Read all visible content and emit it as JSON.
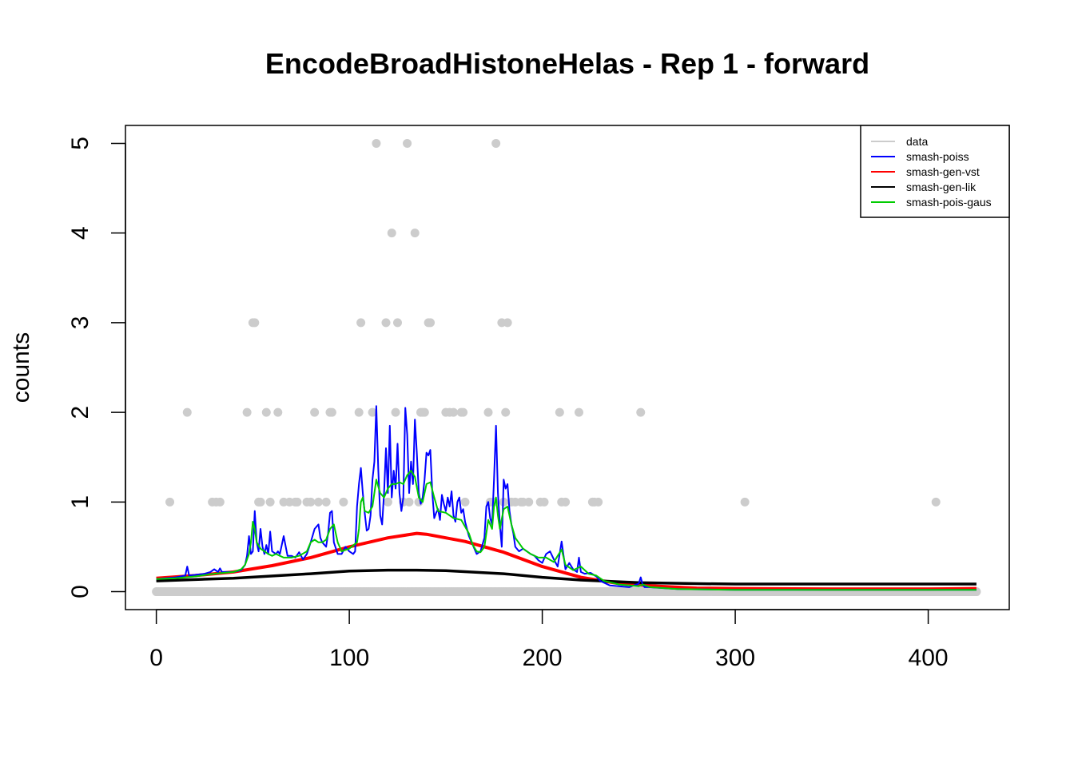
{
  "chart_data": {
    "type": "line",
    "title": "EncodeBroadHistoneHelas - Rep 1 - forward",
    "xlabel": "",
    "ylabel": "counts",
    "xlim": [
      -16,
      442
    ],
    "ylim": [
      -0.2,
      5.2
    ],
    "x_ticks": [
      0,
      100,
      200,
      300,
      400
    ],
    "y_ticks": [
      0,
      1,
      2,
      3,
      4,
      5
    ],
    "grid": false,
    "legend_position": "top-right",
    "legend": [
      {
        "label": "data",
        "color": "#cccccc"
      },
      {
        "label": "smash-poiss",
        "color": "#0000ff"
      },
      {
        "label": "smash-gen-vst",
        "color": "#ff0000"
      },
      {
        "label": "smash-gen-lik",
        "color": "#000000"
      },
      {
        "label": "smash-pois-gaus",
        "color": "#00cc00"
      }
    ],
    "data_points": {
      "name": "data",
      "color": "#cccccc",
      "x_zero_range": [
        0,
        425
      ],
      "nonzero_x": [
        7,
        16,
        29,
        31,
        33,
        47,
        50,
        51,
        53,
        54,
        57,
        59,
        63,
        66,
        69,
        72,
        73,
        78,
        80,
        82,
        84,
        88,
        90,
        91,
        97,
        105,
        106,
        112,
        114,
        119,
        120,
        122,
        124,
        125,
        128,
        130,
        131,
        134,
        136,
        137,
        138,
        139,
        141,
        142,
        150,
        152,
        154,
        158,
        159,
        160,
        172,
        173,
        175,
        176,
        179,
        180,
        181,
        182,
        184,
        186,
        189,
        190,
        193,
        199,
        201,
        209,
        210,
        212,
        219,
        226,
        227,
        229,
        251,
        305,
        404
      ],
      "nonzero_y": [
        1,
        2,
        1,
        1,
        1,
        2,
        3,
        3,
        1,
        1,
        2,
        1,
        2,
        1,
        1,
        1,
        1,
        1,
        1,
        2,
        1,
        1,
        2,
        2,
        1,
        2,
        3,
        2,
        5,
        3,
        1,
        4,
        2,
        3,
        1,
        5,
        1,
        4,
        1,
        2,
        2,
        2,
        3,
        3,
        2,
        2,
        2,
        2,
        2,
        1,
        2,
        1,
        1,
        5,
        3,
        1,
        2,
        3,
        1,
        1,
        1,
        1,
        1,
        1,
        1,
        2,
        1,
        1,
        2,
        1,
        1,
        1,
        2,
        1,
        1
      ]
    },
    "series": [
      {
        "name": "smash-poiss",
        "color": "#0000ff",
        "x": [
          0,
          10,
          15,
          16,
          17,
          25,
          28,
          30,
          32,
          33,
          34,
          40,
          44,
          46,
          47,
          48,
          49,
          50,
          51,
          52,
          53,
          54,
          55,
          56,
          57,
          58,
          59,
          60,
          62,
          63,
          64,
          66,
          68,
          70,
          72,
          74,
          76,
          78,
          80,
          82,
          84,
          85,
          86,
          88,
          89,
          90,
          91,
          92,
          94,
          96,
          98,
          100,
          102,
          103,
          104,
          105,
          106,
          107,
          108,
          109,
          110,
          111,
          112,
          113,
          114,
          115,
          116,
          117,
          118,
          119,
          120,
          121,
          122,
          123,
          124,
          125,
          126,
          127,
          128,
          129,
          130,
          131,
          132,
          133,
          134,
          135,
          136,
          137,
          138,
          139,
          140,
          141,
          142,
          143,
          144,
          145,
          146,
          147,
          148,
          149,
          150,
          151,
          152,
          153,
          154,
          155,
          156,
          157,
          158,
          159,
          160,
          162,
          164,
          166,
          168,
          170,
          171,
          172,
          173,
          174,
          175,
          176,
          177,
          178,
          179,
          180,
          181,
          182,
          183,
          184,
          185,
          186,
          188,
          190,
          192,
          194,
          196,
          198,
          200,
          202,
          204,
          206,
          208,
          210,
          212,
          214,
          216,
          218,
          219,
          220,
          222,
          225,
          228,
          230,
          235,
          245,
          250,
          251,
          252,
          253,
          255,
          270,
          300,
          350,
          400,
          425
        ],
        "y": [
          0.14,
          0.16,
          0.18,
          0.28,
          0.18,
          0.2,
          0.22,
          0.25,
          0.22,
          0.26,
          0.22,
          0.22,
          0.24,
          0.3,
          0.4,
          0.62,
          0.42,
          0.45,
          0.9,
          0.55,
          0.45,
          0.7,
          0.5,
          0.42,
          0.52,
          0.42,
          0.67,
          0.45,
          0.42,
          0.45,
          0.42,
          0.62,
          0.4,
          0.4,
          0.38,
          0.44,
          0.36,
          0.42,
          0.55,
          0.7,
          0.75,
          0.6,
          0.55,
          0.5,
          0.65,
          0.88,
          0.9,
          0.55,
          0.42,
          0.42,
          0.5,
          0.45,
          0.42,
          0.45,
          0.95,
          1.2,
          1.38,
          1.1,
          0.88,
          0.68,
          0.7,
          0.85,
          1.25,
          1.45,
          2.07,
          1.38,
          0.85,
          0.75,
          1.1,
          1.6,
          1.1,
          1.85,
          1.05,
          1.35,
          1.15,
          1.65,
          1.1,
          0.9,
          1.05,
          2.05,
          1.75,
          1.1,
          1.45,
          1.2,
          1.92,
          1.55,
          1.1,
          0.98,
          1.05,
          1.25,
          1.55,
          1.52,
          1.58,
          1.1,
          0.82,
          0.88,
          0.92,
          0.8,
          1.08,
          0.98,
          0.9,
          1.05,
          0.95,
          1.12,
          0.85,
          0.78,
          1.0,
          1.05,
          0.88,
          0.92,
          0.78,
          0.62,
          0.52,
          0.42,
          0.45,
          0.6,
          0.95,
          1.0,
          0.82,
          0.75,
          1.25,
          1.85,
          1.1,
          0.75,
          0.5,
          1.25,
          1.15,
          1.2,
          0.9,
          0.75,
          0.65,
          0.5,
          0.45,
          0.48,
          0.45,
          0.42,
          0.4,
          0.35,
          0.32,
          0.42,
          0.45,
          0.36,
          0.28,
          0.56,
          0.25,
          0.32,
          0.25,
          0.22,
          0.38,
          0.22,
          0.2,
          0.21,
          0.17,
          0.12,
          0.07,
          0.05,
          0.09,
          0.16,
          0.08,
          0.05,
          0.05,
          0.03,
          0.02,
          0.02,
          0.02,
          0.02
        ]
      },
      {
        "name": "smash-gen-vst",
        "color": "#ff0000",
        "x": [
          0,
          20,
          40,
          60,
          80,
          100,
          120,
          135,
          140,
          160,
          180,
          200,
          220,
          240,
          260,
          280,
          300,
          350,
          400,
          425
        ],
        "y": [
          0.15,
          0.18,
          0.22,
          0.29,
          0.38,
          0.5,
          0.6,
          0.65,
          0.64,
          0.56,
          0.44,
          0.28,
          0.16,
          0.09,
          0.06,
          0.04,
          0.035,
          0.03,
          0.03,
          0.035
        ]
      },
      {
        "name": "smash-gen-lik",
        "color": "#000000",
        "x": [
          0,
          40,
          80,
          100,
          120,
          135,
          150,
          180,
          200,
          220,
          250,
          280,
          300,
          350,
          400,
          425
        ],
        "y": [
          0.12,
          0.15,
          0.2,
          0.23,
          0.24,
          0.24,
          0.235,
          0.2,
          0.16,
          0.13,
          0.1,
          0.09,
          0.085,
          0.085,
          0.085,
          0.085
        ]
      },
      {
        "name": "smash-pois-gaus",
        "color": "#00cc00",
        "x": [
          0,
          10,
          20,
          30,
          40,
          44,
          46,
          48,
          49,
          50,
          51,
          52,
          54,
          56,
          58,
          60,
          62,
          64,
          66,
          70,
          74,
          78,
          80,
          82,
          84,
          86,
          88,
          90,
          92,
          94,
          96,
          100,
          104,
          105,
          106,
          107,
          108,
          110,
          112,
          114,
          116,
          118,
          120,
          122,
          124,
          126,
          128,
          130,
          132,
          134,
          136,
          138,
          140,
          142,
          144,
          146,
          150,
          154,
          158,
          162,
          164,
          166,
          168,
          170,
          172,
          174,
          175,
          176,
          177,
          178,
          180,
          182,
          184,
          186,
          190,
          194,
          198,
          202,
          206,
          208,
          210,
          212,
          216,
          220,
          224,
          228,
          232,
          240,
          250,
          252,
          256,
          270,
          300,
          350,
          400,
          425
        ],
        "y": [
          0.14,
          0.15,
          0.17,
          0.2,
          0.22,
          0.25,
          0.3,
          0.42,
          0.55,
          0.78,
          0.7,
          0.55,
          0.48,
          0.45,
          0.42,
          0.4,
          0.42,
          0.4,
          0.38,
          0.38,
          0.4,
          0.45,
          0.55,
          0.58,
          0.55,
          0.55,
          0.58,
          0.7,
          0.75,
          0.55,
          0.45,
          0.48,
          0.55,
          0.7,
          1.0,
          1.05,
          0.9,
          0.88,
          0.95,
          1.25,
          1.1,
          1.05,
          1.15,
          1.2,
          1.2,
          1.22,
          1.2,
          1.3,
          1.35,
          1.28,
          1.05,
          1.0,
          1.2,
          1.22,
          1.05,
          0.9,
          0.88,
          0.82,
          0.8,
          0.65,
          0.52,
          0.45,
          0.44,
          0.5,
          0.8,
          0.7,
          0.95,
          1.05,
          0.85,
          0.7,
          0.92,
          0.95,
          0.75,
          0.6,
          0.48,
          0.42,
          0.38,
          0.38,
          0.33,
          0.4,
          0.47,
          0.3,
          0.24,
          0.28,
          0.2,
          0.18,
          0.12,
          0.08,
          0.06,
          0.08,
          0.05,
          0.03,
          0.02,
          0.02,
          0.02,
          0.02
        ]
      }
    ]
  }
}
